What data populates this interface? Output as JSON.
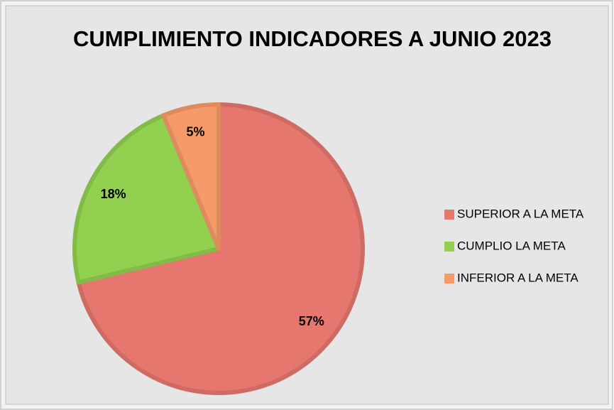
{
  "chart_data": {
    "type": "pie",
    "title": "CUMPLIMIENTO INDICADORES A JUNIO 2023",
    "categories": [
      "SUPERIOR A LA META",
      "CUMPLIO LA META",
      "INFERIOR A LA META"
    ],
    "values": [
      57,
      18,
      5
    ],
    "value_labels": [
      "57%",
      "18%",
      "5%"
    ],
    "colors": [
      "#e5776e",
      "#92d050",
      "#f79a6a"
    ],
    "legend": "right"
  }
}
